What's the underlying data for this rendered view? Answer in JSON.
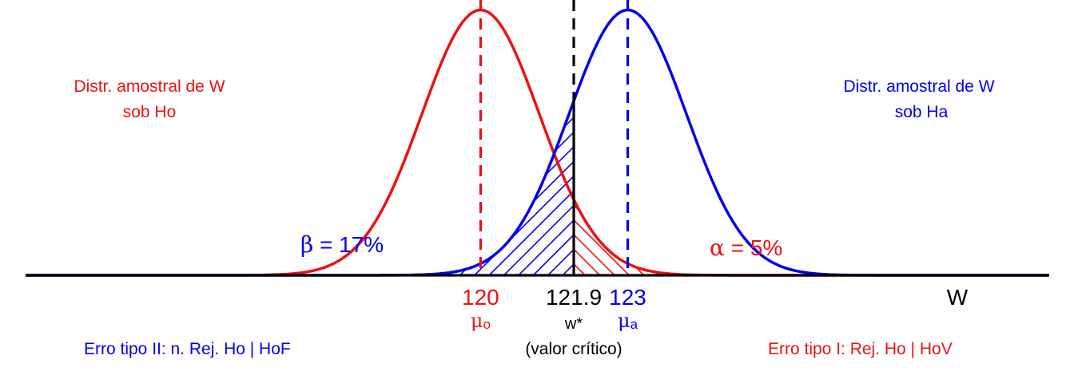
{
  "colors": {
    "h0": "#ee1111",
    "ha": "#0000ee",
    "critical": "#000000",
    "axis": "#000000"
  },
  "chart_data": {
    "type": "line",
    "title": "",
    "xlabel": "W",
    "xlim": [
      110.2,
      132.1
    ],
    "ylim": [
      0,
      0.333
    ],
    "series": [
      {
        "name": "Distr. amostral de W sob Ho",
        "kind": "normal",
        "mean": 120,
        "sd": 1.2,
        "color": "#ee1111"
      },
      {
        "name": "Distr. amostral de W sob Ha",
        "kind": "normal",
        "mean": 123,
        "sd": 1.2,
        "color": "#0000ee"
      }
    ],
    "critical_value": 121.9,
    "tick_labels": {
      "mu0": "120",
      "critical": "121.9",
      "mua": "123"
    },
    "sub_labels": {
      "mu0": "μ",
      "mu0_sub": "o",
      "critical": "w*",
      "critical_note": "(valor crítico)",
      "mua": "μ",
      "mua_sub": "a"
    },
    "curve_labels": {
      "h0_line1": "Distr. amostral de W",
      "h0_line2": "sob Ho",
      "ha_line1": "Distr. amostral de W",
      "ha_line2": "sob Ha"
    },
    "areas": {
      "beta": {
        "symbol": "β",
        "text": " = 17%",
        "value": 0.17
      },
      "alpha": {
        "symbol": "α",
        "text": " = 5%",
        "value": 0.05
      }
    },
    "annotations": {
      "error2": "Erro tipo II: n. Rej. Ho | HoF",
      "error1": "Erro tipo I: Rej. Ho | HoV"
    }
  }
}
